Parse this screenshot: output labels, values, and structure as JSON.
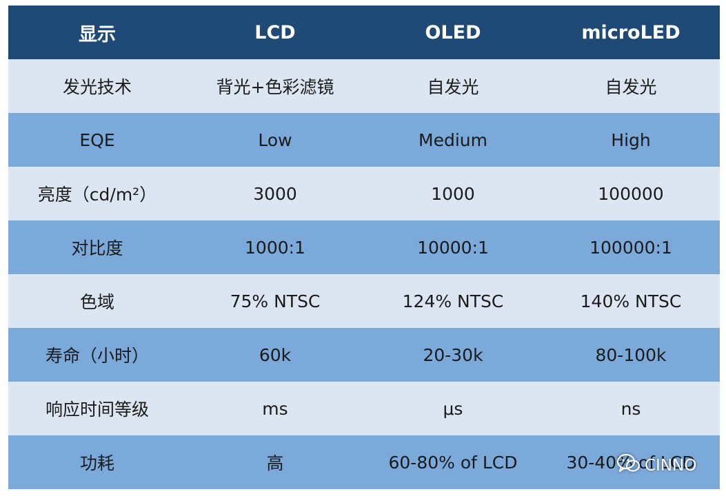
{
  "header": [
    "显示",
    "LCD",
    "OLED",
    "microLED"
  ],
  "rows": [
    {
      "label": "发光技术",
      "lcd": "背光+色彩滤镜",
      "oled": "自发光",
      "microled": "自发光"
    },
    {
      "label": "EQE",
      "lcd": "Low",
      "oled": "Medium",
      "microled": "High"
    },
    {
      "label": "亮度（cd/m²）",
      "lcd": "3000",
      "oled": "1000",
      "microled": "100000"
    },
    {
      "label": "对比度",
      "lcd": "1000:1",
      "oled": "10000:1",
      "microled": "100000:1"
    },
    {
      "label": "色域",
      "lcd": "75% NTSC",
      "oled": "124% NTSC",
      "microled": "140% NTSC"
    },
    {
      "label": "寿命（小时）",
      "lcd": "60k",
      "oled": "20-30k",
      "microled": "80-100k"
    },
    {
      "label": "响应时间等级",
      "lcd": "ms",
      "oled": "μs",
      "microled": "ns"
    },
    {
      "label": "功耗",
      "lcd": "高",
      "oled": "60-80% of LCD",
      "microled": "30-40% of LCD"
    }
  ],
  "watermark": {
    "text": "CINNO",
    "icon": "wechat-icon"
  },
  "colors": {
    "header": "#1f4a75",
    "light_row": "#dce6f2",
    "dark_row": "#7ba9d9"
  }
}
